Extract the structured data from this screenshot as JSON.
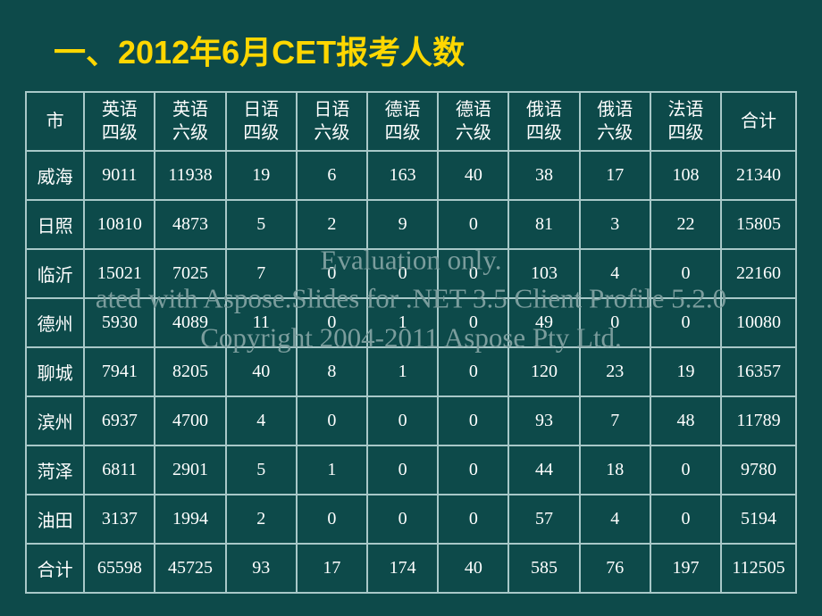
{
  "title": "一、2012年6月CET报考人数",
  "table": {
    "type": "table",
    "background_color": "#0d4a4a",
    "border_color": "#a8c8c8",
    "text_color": "#ffffff",
    "title_color": "#ffd700",
    "title_fontsize": 36,
    "cell_fontsize": 20,
    "columns": [
      "市",
      "英语\n四级",
      "英语\n六级",
      "日语\n四级",
      "日语\n六级",
      "德语\n四级",
      "德语\n六级",
      "俄语\n四级",
      "俄语\n六级",
      "法语\n四级",
      "合计"
    ],
    "rows": [
      [
        "威海",
        "9011",
        "11938",
        "19",
        "6",
        "163",
        "40",
        "38",
        "17",
        "108",
        "21340"
      ],
      [
        "日照",
        "10810",
        "4873",
        "5",
        "2",
        "9",
        "0",
        "81",
        "3",
        "22",
        "15805"
      ],
      [
        "临沂",
        "15021",
        "7025",
        "7",
        "0",
        "0",
        "0",
        "103",
        "4",
        "0",
        "22160"
      ],
      [
        "德州",
        "5930",
        "4089",
        "11",
        "0",
        "1",
        "0",
        "49",
        "0",
        "0",
        "10080"
      ],
      [
        "聊城",
        "7941",
        "8205",
        "40",
        "8",
        "1",
        "0",
        "120",
        "23",
        "19",
        "16357"
      ],
      [
        "滨州",
        "6937",
        "4700",
        "4",
        "0",
        "0",
        "0",
        "93",
        "7",
        "48",
        "11789"
      ],
      [
        "菏泽",
        "6811",
        "2901",
        "5",
        "1",
        "0",
        "0",
        "44",
        "18",
        "0",
        "9780"
      ],
      [
        "油田",
        "3137",
        "1994",
        "2",
        "0",
        "0",
        "0",
        "57",
        "4",
        "0",
        "5194"
      ],
      [
        "合计",
        "65598",
        "45725",
        "93",
        "17",
        "174",
        "40",
        "585",
        "76",
        "197",
        "112505"
      ]
    ]
  },
  "watermark": {
    "line1": "Evaluation only.",
    "line2": "ated with Aspose.Slides for .NET 3.5 Client Profile 5.2.0",
    "line3": "Copyright 2004-2011 Aspose Pty Ltd.",
    "color": "#7b9d9d",
    "fontsize": 31
  }
}
